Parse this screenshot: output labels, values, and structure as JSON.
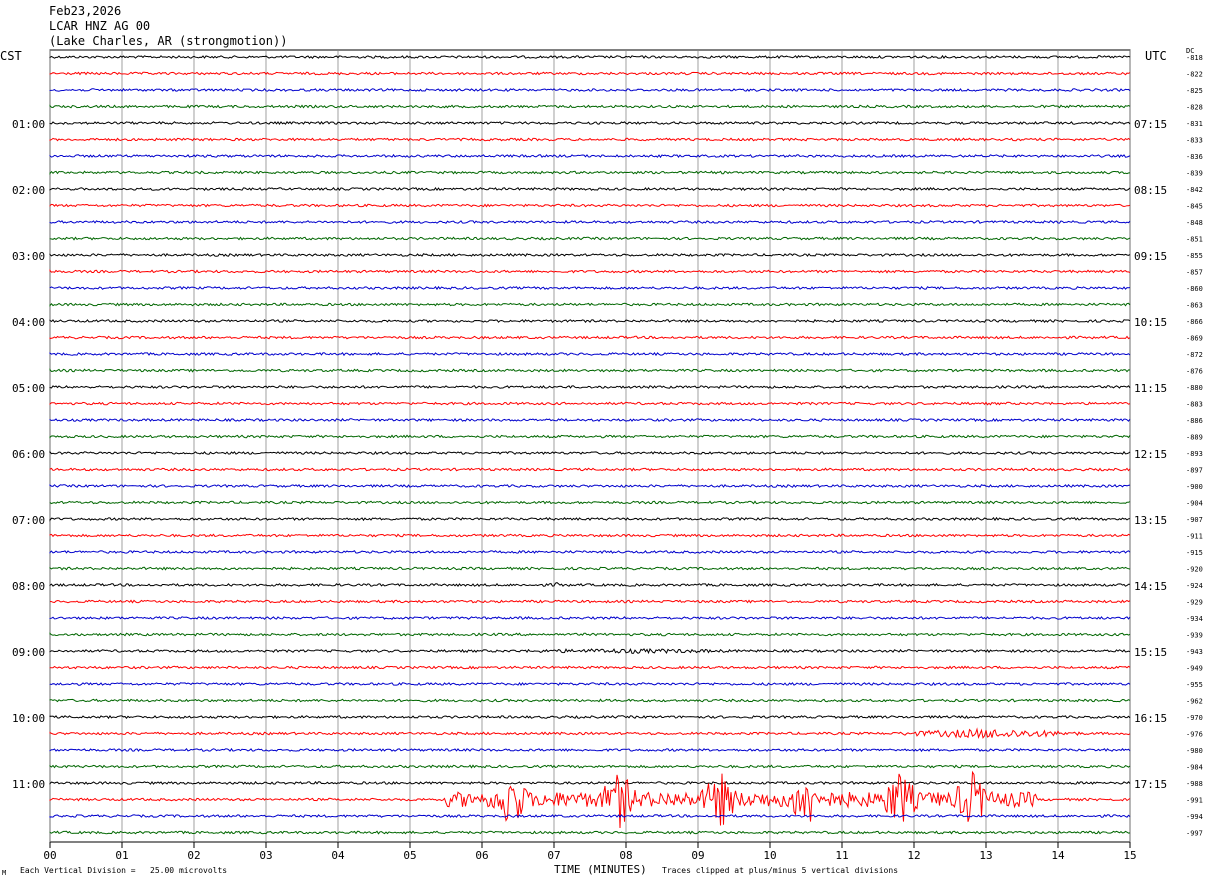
{
  "header": {
    "date": "Feb23,2026",
    "station": "LCAR HNZ AG 00",
    "location": "(Lake Charles, AR (strongmotion))"
  },
  "left_tz": "CST",
  "right_tz": "UTC",
  "dc_label": "DC",
  "footer": {
    "scale": "Each Vertical Division =   25.00 microvolts",
    "xlabel": "TIME (MINUTES)",
    "clip_note": "Traces clipped at plus/minus 5 vertical divisions",
    "mark": "M"
  },
  "colors": {
    "cycle": [
      "#000000",
      "#ff0000",
      "#0000cc",
      "#006600"
    ],
    "grid": "#888888"
  },
  "chart_data": {
    "type": "line",
    "title": "LCAR HNZ AG 00",
    "xlabel": "TIME (MINUTES)",
    "xlim": [
      0,
      15
    ],
    "x_ticks": [
      "00",
      "01",
      "02",
      "03",
      "04",
      "05",
      "06",
      "07",
      "08",
      "09",
      "10",
      "11",
      "12",
      "13",
      "14",
      "15"
    ],
    "left_labels": [
      "01:00",
      "02:00",
      "03:00",
      "04:00",
      "05:00",
      "06:00",
      "07:00",
      "08:00",
      "09:00",
      "10:00",
      "11:00"
    ],
    "right_labels": [
      "07:15",
      "08:15",
      "09:15",
      "10:15",
      "11:15",
      "12:15",
      "13:15",
      "14:15",
      "15:15",
      "16:15",
      "17:15"
    ],
    "dc_offsets": [
      "-818",
      "-822",
      "-825",
      "-828",
      "-831",
      "-833",
      "-836",
      "-839",
      "-842",
      "-845",
      "-848",
      "-851",
      "-855",
      "-857",
      "-860",
      "-863",
      "-866",
      "-869",
      "-872",
      "-876",
      "-880",
      "-883",
      "-886",
      "-889",
      "-893",
      "-897",
      "-900",
      "-904",
      "-907",
      "-911",
      "-915",
      "-920",
      "-924",
      "-929",
      "-934",
      "-939",
      "-943",
      "-949",
      "-955",
      "-962",
      "-970",
      "-976",
      "-980",
      "-984",
      "-988",
      "-991",
      "-994",
      "-997"
    ],
    "trace_count": 48,
    "events": [
      {
        "trace": 32,
        "start_min": 6.9,
        "end_min": 7.2,
        "amplitude": 2.5
      },
      {
        "trace": 36,
        "start_min": 6.0,
        "end_min": 10.0,
        "amplitude": 2.5
      },
      {
        "trace": 41,
        "start_min": 11.8,
        "end_min": 14.3,
        "amplitude": 5
      },
      {
        "trace": 45,
        "start_min": 5.5,
        "end_min": 13.7,
        "amplitude": 30
      }
    ]
  }
}
